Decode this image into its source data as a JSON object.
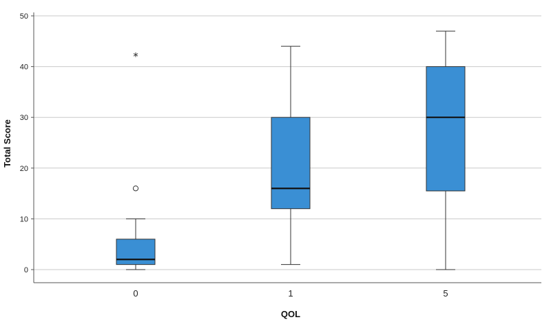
{
  "chart_data": {
    "type": "boxplot",
    "xlabel": "QOL",
    "ylabel": "Total Score",
    "ylim": [
      0,
      50
    ],
    "yticks": [
      "0",
      "10",
      "20",
      "30",
      "40",
      "50"
    ],
    "grid": true,
    "box_color": "#3a8fd4",
    "categories": [
      "0",
      "1",
      "5"
    ],
    "boxes": [
      {
        "category": "0",
        "whisker_low": 0,
        "q1": 1,
        "median": 2,
        "q3": 6,
        "whisker_high": 10,
        "outliers": [
          16
        ],
        "extremes": [
          42
        ]
      },
      {
        "category": "1",
        "whisker_low": 1,
        "q1": 12,
        "median": 16,
        "q3": 30,
        "whisker_high": 44,
        "outliers": [],
        "extremes": []
      },
      {
        "category": "5",
        "whisker_low": 0,
        "q1": 15.5,
        "median": 30,
        "q3": 40,
        "whisker_high": 47,
        "outliers": [],
        "extremes": []
      }
    ]
  }
}
